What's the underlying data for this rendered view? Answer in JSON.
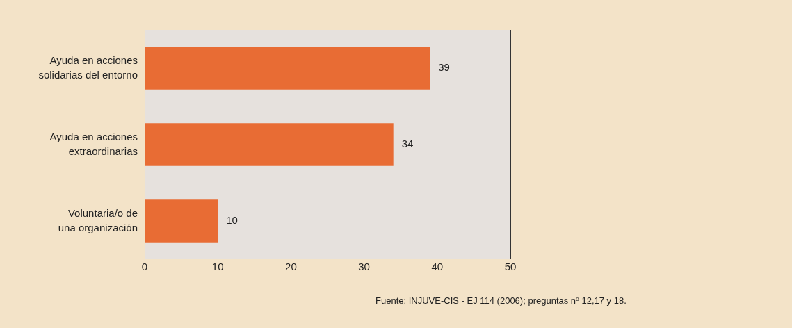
{
  "chart_data": {
    "type": "bar",
    "orientation": "horizontal",
    "categories": [
      "Ayuda en acciones solidarias del entorno",
      "Ayuda en acciones extraordinarias",
      "Voluntaria/o de una organización"
    ],
    "values": [
      39,
      34,
      10
    ],
    "color": "#e86c34",
    "xlim": [
      0,
      50
    ],
    "xticks": [
      0,
      10,
      20,
      30,
      40,
      50
    ],
    "grid": "x",
    "legend": false,
    "data_labels": true,
    "annotations": [
      "Fuente: INJUVE-CIS - EJ 114 (2006); preguntas nº 12,17 y 18."
    ]
  }
}
